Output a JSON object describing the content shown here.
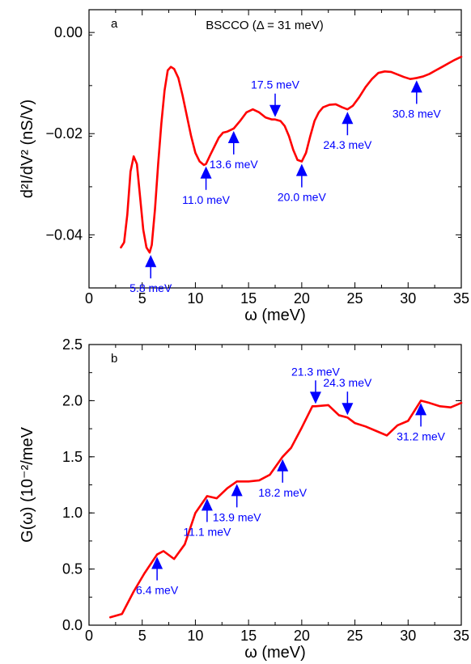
{
  "chart_data": [
    {
      "type": "line",
      "panel_label": "a",
      "title": "BSCCO (Δ = 31 meV)",
      "xlabel": "ω (meV)",
      "ylabel": "d²I/dV² (nS/V)",
      "xlim": [
        0,
        35
      ],
      "ylim": [
        -0.0505,
        0.0045
      ],
      "xticks": [
        0,
        5,
        10,
        15,
        20,
        25,
        30,
        35
      ],
      "xtick_labels": [
        "0",
        "5",
        "10",
        "15",
        "20",
        "25",
        "30",
        "35"
      ],
      "yticks": [
        0.0,
        -0.02,
        -0.04
      ],
      "ytick_labels": [
        "0.00",
        "−0.02",
        "−0.04"
      ],
      "line_color": "#ff0000",
      "annotation_color": "#0000ff",
      "series": [
        {
          "x": [
            3.0,
            3.3,
            3.6,
            3.9,
            4.2,
            4.5,
            4.8,
            5.1,
            5.4,
            5.7,
            5.9,
            6.2,
            6.5,
            6.8,
            7.1,
            7.4,
            7.7,
            8.0,
            8.4,
            8.8,
            9.2,
            9.6,
            10.0,
            10.4,
            10.8,
            11.0,
            11.4,
            11.8,
            12.2,
            12.6,
            13.0,
            13.6,
            14.2,
            14.8,
            15.4,
            16.0,
            16.6,
            17.2,
            17.5,
            18.0,
            18.4,
            18.8,
            19.2,
            19.6,
            20.0,
            20.4,
            20.8,
            21.2,
            21.6,
            22.0,
            22.6,
            23.2,
            23.8,
            24.3,
            24.8,
            25.4,
            26.0,
            26.6,
            27.2,
            27.8,
            28.4,
            29.0,
            29.6,
            30.2,
            30.8,
            31.4,
            32.0,
            32.6,
            33.2,
            33.8,
            34.4,
            35.0
          ],
          "y": [
            -0.0425,
            -0.0415,
            -0.036,
            -0.0275,
            -0.0245,
            -0.026,
            -0.0325,
            -0.039,
            -0.0425,
            -0.0435,
            -0.042,
            -0.035,
            -0.026,
            -0.018,
            -0.0115,
            -0.0075,
            -0.0068,
            -0.0072,
            -0.009,
            -0.0125,
            -0.0165,
            -0.0205,
            -0.0238,
            -0.0255,
            -0.0262,
            -0.026,
            -0.0242,
            -0.0225,
            -0.0208,
            -0.0198,
            -0.0196,
            -0.019,
            -0.0175,
            -0.0158,
            -0.0152,
            -0.0158,
            -0.0168,
            -0.0172,
            -0.0172,
            -0.0175,
            -0.0185,
            -0.0205,
            -0.0232,
            -0.0252,
            -0.0255,
            -0.0238,
            -0.0205,
            -0.0175,
            -0.0158,
            -0.0148,
            -0.0143,
            -0.0142,
            -0.0148,
            -0.0152,
            -0.0145,
            -0.0128,
            -0.0108,
            -0.0092,
            -0.008,
            -0.0077,
            -0.0078,
            -0.0083,
            -0.0088,
            -0.0092,
            -0.009,
            -0.0087,
            -0.0082,
            -0.0075,
            -0.0068,
            -0.0061,
            -0.0054,
            -0.0048
          ]
        }
      ],
      "annotations": [
        {
          "label": "5.8 meV",
          "x": 5.8,
          "y": -0.0435,
          "dir": "up"
        },
        {
          "label": "11.0 meV",
          "x": 11.0,
          "y": -0.026,
          "dir": "up"
        },
        {
          "label": "13.6 meV",
          "x": 13.6,
          "y": -0.019,
          "dir": "up"
        },
        {
          "label": "17.5 meV",
          "x": 17.5,
          "y": -0.0172,
          "dir": "down"
        },
        {
          "label": "20.0 meV",
          "x": 20.0,
          "y": -0.0255,
          "dir": "up"
        },
        {
          "label": "24.3 meV",
          "x": 24.3,
          "y": -0.0152,
          "dir": "up"
        },
        {
          "label": "30.8 meV",
          "x": 30.8,
          "y": -0.009,
          "dir": "up"
        }
      ]
    },
    {
      "type": "line",
      "panel_label": "b",
      "title": "",
      "xlabel": "ω (meV)",
      "ylabel": "G(ω) (10⁻²/meV",
      "xlim": [
        0,
        35
      ],
      "ylim": [
        0.0,
        2.5
      ],
      "xticks": [
        0,
        5,
        10,
        15,
        20,
        25,
        30,
        35
      ],
      "xtick_labels": [
        "0",
        "5",
        "10",
        "15",
        "20",
        "25",
        "30",
        "35"
      ],
      "yticks": [
        0.0,
        0.5,
        1.0,
        1.5,
        2.0,
        2.5
      ],
      "ytick_labels": [
        "0.0",
        "0.5",
        "1.0",
        "1.5",
        "2.0",
        "2.5"
      ],
      "line_color": "#ff0000",
      "annotation_color": "#0000ff",
      "series": [
        {
          "x": [
            2.0,
            3.1,
            4.2,
            5.2,
            6.4,
            7.0,
            8.0,
            9.0,
            10.0,
            11.1,
            12.0,
            13.0,
            13.9,
            15.0,
            16.0,
            17.0,
            18.2,
            19.0,
            20.0,
            21.0,
            21.3,
            22.5,
            23.5,
            24.3,
            25.0,
            26.0,
            27.0,
            28.0,
            29.0,
            30.0,
            31.2,
            32.0,
            33.0,
            34.0,
            35.0
          ],
          "y": [
            0.07,
            0.1,
            0.3,
            0.46,
            0.63,
            0.66,
            0.59,
            0.72,
            1.0,
            1.15,
            1.13,
            1.22,
            1.28,
            1.28,
            1.29,
            1.34,
            1.5,
            1.58,
            1.76,
            1.95,
            1.95,
            1.96,
            1.87,
            1.85,
            1.8,
            1.77,
            1.73,
            1.69,
            1.78,
            1.82,
            2.0,
            1.98,
            1.95,
            1.94,
            1.98
          ]
        }
      ],
      "annotations": [
        {
          "label": "6.4 meV",
          "x": 6.4,
          "y": 0.63,
          "dir": "up"
        },
        {
          "label": "11.1 meV",
          "x": 11.1,
          "y": 1.15,
          "dir": "up"
        },
        {
          "label": "13.9 meV",
          "x": 13.9,
          "y": 1.28,
          "dir": "up"
        },
        {
          "label": "18.2 meV",
          "x": 18.2,
          "y": 1.5,
          "dir": "up"
        },
        {
          "label": "21.3 meV",
          "x": 21.3,
          "y": 1.95,
          "dir": "down"
        },
        {
          "label": "24.3 meV",
          "x": 24.3,
          "y": 1.85,
          "dir": "down"
        },
        {
          "label": "31.2 meV",
          "x": 31.2,
          "y": 2.0,
          "dir": "up"
        }
      ]
    }
  ]
}
